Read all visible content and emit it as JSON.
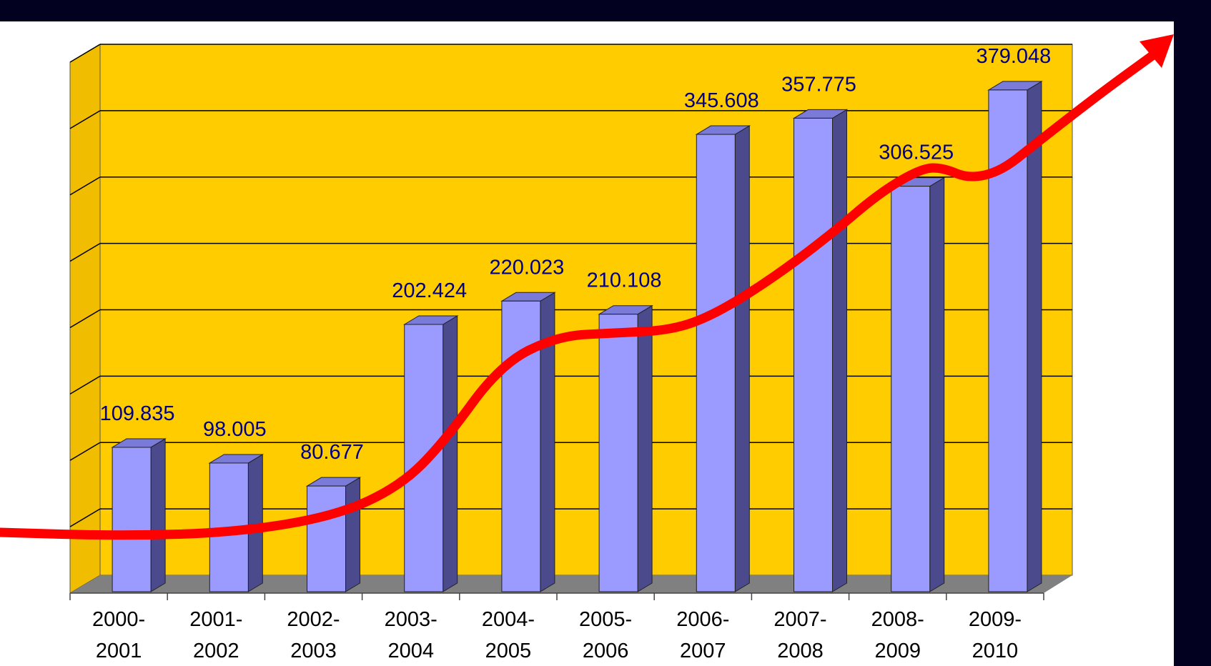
{
  "chart_data": {
    "type": "bar",
    "title": "",
    "xlabel": "",
    "ylabel": "",
    "categories": [
      [
        "2000-",
        "2001"
      ],
      [
        "2001-",
        "2002"
      ],
      [
        "2002-",
        "2003"
      ],
      [
        "2003-",
        "2004"
      ],
      [
        "2004-",
        "2005"
      ],
      [
        "2005-",
        "2006"
      ],
      [
        "2006-",
        "2007"
      ],
      [
        "2007-",
        "2008"
      ],
      [
        "2008-",
        "2009"
      ],
      [
        "2009-",
        "2010"
      ]
    ],
    "values": [
      109835,
      98005,
      80677,
      202424,
      220023,
      210108,
      345608,
      357775,
      306525,
      379048
    ],
    "data_labels": [
      "109.835",
      "98.005",
      "80.677",
      "202.424",
      "220.023",
      "210.108",
      "345.608",
      "357.775",
      "306.525",
      "379.048"
    ],
    "ylim": [
      0,
      400000
    ],
    "grid": true,
    "y_tick_labels_visible": false,
    "trend_arrow": true,
    "colors": {
      "bar_front": "#9b9bff",
      "bar_side": "#4a4a8c",
      "bar_top": "#7a7ad8",
      "back_wall": "#ffcc00",
      "side_wall": "#f0bd00",
      "floor": "#808080",
      "gridline": "#000000",
      "trend_arrow": "#ff0000",
      "data_label": "#000080",
      "axis_label": "#000000",
      "frame_band": "#020220"
    }
  }
}
